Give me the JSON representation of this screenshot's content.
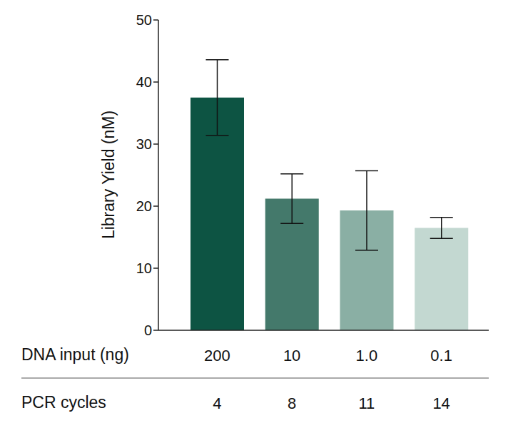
{
  "chart_data": {
    "type": "bar",
    "y_label": "Library Yield (nM)",
    "x_label": "DNA input (ng)",
    "categories": [
      "200",
      "10",
      "1.0",
      "0.1"
    ],
    "values": [
      37.5,
      21.2,
      19.3,
      16.5
    ],
    "errors": [
      6.1,
      4.0,
      6.4,
      1.7
    ],
    "colors": [
      "#0d5443",
      "#44796b",
      "#8aafa4",
      "#c3d8d1"
    ],
    "secondary_row": {
      "label": "PCR cycles",
      "values": [
        4,
        8,
        11,
        14
      ]
    },
    "ylim": [
      0,
      50
    ],
    "yticks": [
      0,
      10,
      20,
      30,
      40,
      50
    ],
    "grid": false
  }
}
